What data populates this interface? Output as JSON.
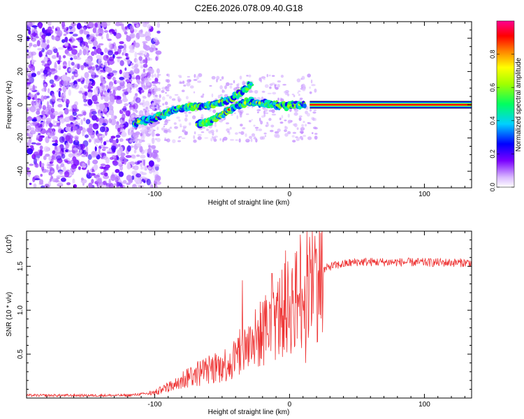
{
  "title": "C2E6.2026.078.09.40.G18",
  "chart_data": [
    {
      "type": "heatmap",
      "xlabel": "Height of straight line (km)",
      "ylabel": "Frequency (Hz)",
      "xlim": [
        -195,
        135
      ],
      "ylim": [
        -50,
        50
      ],
      "xticks": [
        -100,
        0,
        100
      ],
      "yticks": [
        -40,
        -20,
        0,
        20,
        40
      ],
      "colorbar": {
        "label": "Normalized spectral amplitude",
        "range": [
          0,
          1
        ],
        "ticks": [
          "0.0",
          "0.2",
          "0.4",
          "0.6",
          "0.8"
        ]
      },
      "features": {
        "noise_region_x": [
          -195,
          -105
        ],
        "constant_line": {
          "x": [
            15,
            135
          ],
          "frequency": 0
        },
        "trace_lower": [
          [
            -115,
            -11
          ],
          [
            -100,
            -8
          ],
          [
            -85,
            -3
          ],
          [
            -75,
            -1
          ],
          [
            -62,
            -1
          ],
          [
            -55,
            1
          ],
          [
            -45,
            3
          ],
          [
            -35,
            8
          ],
          [
            -28,
            13
          ]
        ],
        "trace_upper": [
          [
            -68,
            -12
          ],
          [
            -60,
            -10
          ],
          [
            -50,
            -6
          ],
          [
            -40,
            -1
          ],
          [
            -30,
            2
          ],
          [
            -20,
            1
          ],
          [
            -10,
            0
          ],
          [
            -3,
            -1
          ],
          [
            5,
            0
          ],
          [
            12,
            0
          ]
        ]
      }
    },
    {
      "type": "line",
      "xlabel": "Height of straight line (km)",
      "ylabel": "SNR (10 * v/v)",
      "yscale_label": "(x10",
      "yscale_exp": "4",
      "xlim": [
        -195,
        135
      ],
      "ylim": [
        0,
        1.9
      ],
      "xticks": [
        -100,
        0,
        100
      ],
      "yticks": [
        0.5,
        1.0,
        1.5
      ],
      "ytick_labels": [
        "0.5",
        "1.0",
        "1.5"
      ],
      "series": [
        {
          "name": "SNR",
          "color": "#ee3333",
          "envelope": [
            [
              -195,
              0.03
            ],
            [
              -120,
              0.03
            ],
            [
              -100,
              0.06
            ],
            [
              -85,
              0.15
            ],
            [
              -75,
              0.25
            ],
            [
              -60,
              0.32
            ],
            [
              -45,
              0.4
            ],
            [
              -30,
              0.6
            ],
            [
              -20,
              0.75
            ],
            [
              -10,
              0.9
            ],
            [
              0,
              1.05
            ],
            [
              10,
              1.2
            ],
            [
              20,
              1.4
            ],
            [
              30,
              1.5
            ],
            [
              50,
              1.55
            ],
            [
              135,
              1.54
            ]
          ],
          "spikes": [
            [
              -35,
              1.34
            ],
            [
              -13,
              1.42
            ],
            [
              -3,
              1.68
            ],
            [
              8,
              1.86
            ],
            [
              12,
              0.4
            ]
          ]
        }
      ]
    }
  ]
}
